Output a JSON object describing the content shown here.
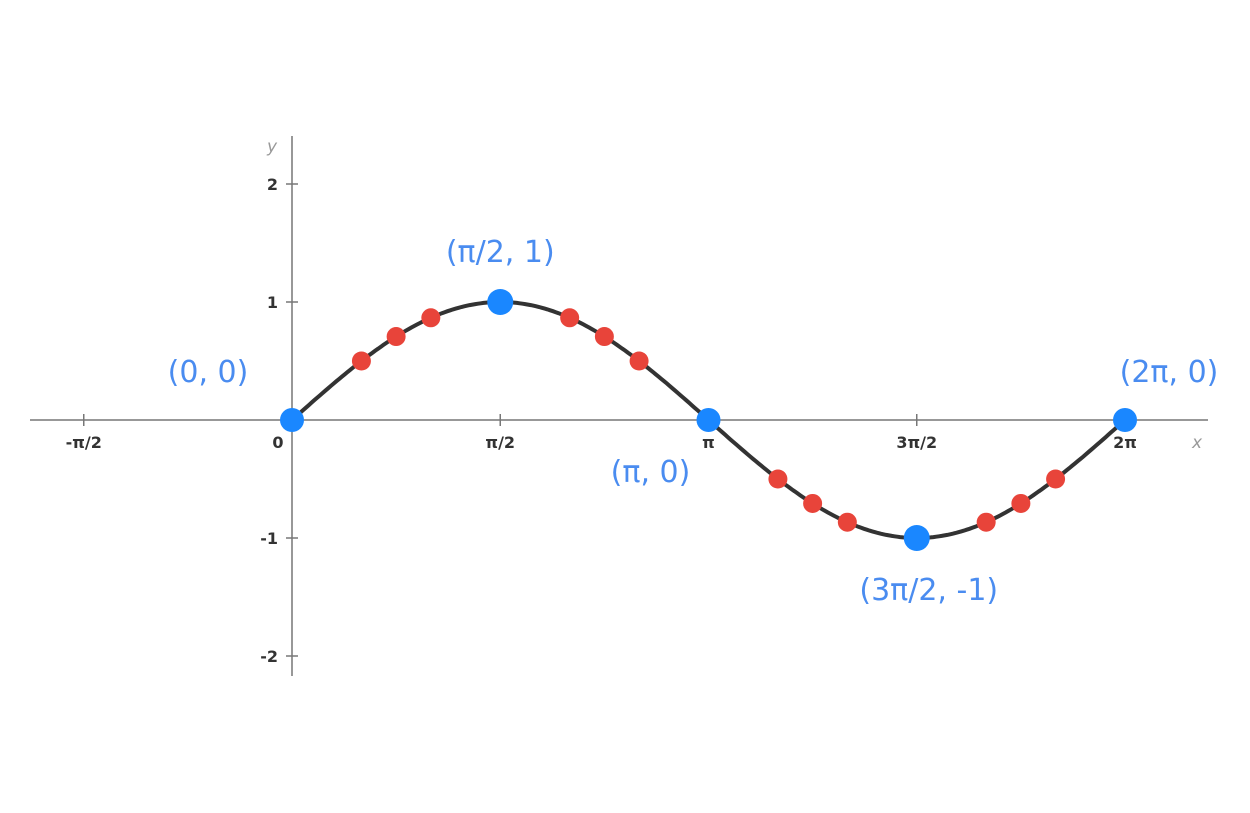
{
  "chart_data": {
    "type": "line",
    "xlabel": "x",
    "ylabel": "y",
    "xlim": [
      -2.0,
      7.0
    ],
    "ylim": [
      -2.2,
      2.4
    ],
    "grid": false,
    "x_ticks": [
      {
        "value": -1.5708,
        "label": "-π/2"
      },
      {
        "value": 0,
        "label": "0"
      },
      {
        "value": 1.5708,
        "label": "π/2"
      },
      {
        "value": 3.1416,
        "label": "π"
      },
      {
        "value": 4.7124,
        "label": "3π/2"
      },
      {
        "value": 6.2832,
        "label": "2π"
      }
    ],
    "y_ticks": [
      {
        "value": 2,
        "label": "2"
      },
      {
        "value": 1,
        "label": "1"
      },
      {
        "value": -1,
        "label": "-1"
      },
      {
        "value": -2,
        "label": "-2"
      }
    ],
    "curve": {
      "function": "sin(x)",
      "domain": [
        0,
        6.2832
      ],
      "color": "#333333"
    },
    "key_points": [
      {
        "x": 0,
        "y": 0,
        "label": "(0, 0)"
      },
      {
        "x": 1.5708,
        "y": 1,
        "label": "(π/2, 1)"
      },
      {
        "x": 3.1416,
        "y": 0,
        "label": "(π, 0)"
      },
      {
        "x": 4.7124,
        "y": -1,
        "label": "(3π/2, -1)"
      },
      {
        "x": 6.2832,
        "y": 0,
        "label": "(2π, 0)"
      }
    ],
    "key_point_color": "#1a87ff",
    "label_color": "#4a8cf0",
    "intermediate_points": [
      {
        "x": 0.5236,
        "y": 0.5
      },
      {
        "x": 0.7854,
        "y": 0.7071
      },
      {
        "x": 1.0472,
        "y": 0.866
      },
      {
        "x": 2.0944,
        "y": 0.866
      },
      {
        "x": 2.3562,
        "y": 0.7071
      },
      {
        "x": 2.618,
        "y": 0.5
      },
      {
        "x": 3.6652,
        "y": -0.5
      },
      {
        "x": 3.927,
        "y": -0.7071
      },
      {
        "x": 4.1888,
        "y": -0.866
      },
      {
        "x": 5.236,
        "y": -0.866
      },
      {
        "x": 5.4978,
        "y": -0.7071
      },
      {
        "x": 5.7596,
        "y": -0.5
      }
    ],
    "intermediate_point_color": "#e8443a"
  }
}
